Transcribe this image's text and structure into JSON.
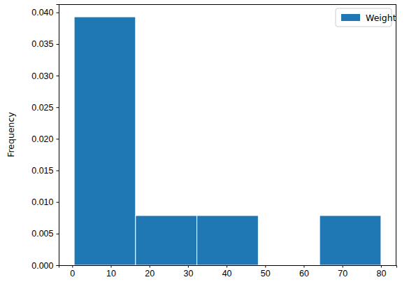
{
  "chart_data": {
    "type": "histogram",
    "y_label": "Frequency",
    "bins": [
      0.5,
      16.4,
      32.3,
      48.2,
      64.1,
      80
    ],
    "series": [
      {
        "name": "Weight",
        "color": "#1f77b4",
        "values": [
          0.0393,
          0.00786,
          0.00786,
          0,
          0.00786
        ]
      }
    ],
    "xlim": [
      -3.5,
      84
    ],
    "xticks": [
      0,
      10,
      20,
      30,
      40,
      50,
      60,
      70,
      80
    ],
    "ylim": [
      0,
      0.0413
    ],
    "yticks": [
      {
        "value": 0,
        "label": "0.000"
      },
      {
        "value": 0.005,
        "label": "0.005"
      },
      {
        "value": 0.01,
        "label": "0.010"
      },
      {
        "value": 0.015,
        "label": "0.015"
      },
      {
        "value": 0.02,
        "label": "0.020"
      },
      {
        "value": 0.025,
        "label": "0.025"
      },
      {
        "value": 0.03,
        "label": "0.030"
      },
      {
        "value": 0.035,
        "label": "0.035"
      },
      {
        "value": 0.04,
        "label": "0.040"
      }
    ],
    "legend": "upper right"
  }
}
